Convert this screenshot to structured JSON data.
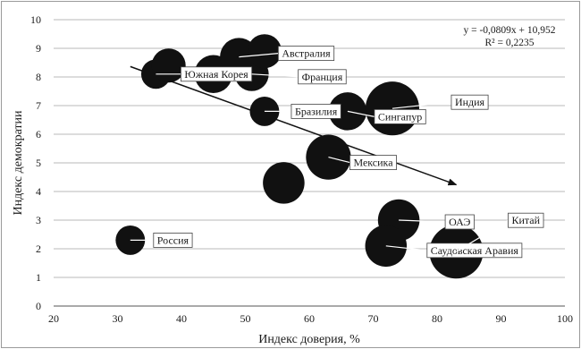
{
  "chart_data": {
    "type": "scatter",
    "subtype": "bubble",
    "title": "",
    "xlabel": "Индекс доверия, %",
    "ylabel": "Индекс демократии",
    "xlim": [
      20,
      100
    ],
    "ylim": [
      0,
      10
    ],
    "x_ticks": [
      "20",
      "30",
      "40",
      "50",
      "60",
      "70",
      "80",
      "90",
      "100"
    ],
    "y_ticks": [
      "0",
      "1",
      "2",
      "3",
      "4",
      "5",
      "6",
      "7",
      "8",
      "9",
      "10"
    ],
    "grid": "horizontal",
    "bubble_color": "#111111",
    "points": [
      {
        "label": "Россия",
        "x": 32,
        "y": 2.3,
        "size": 3
      },
      {
        "label": "Южная Корея",
        "x": 36,
        "y": 8.1,
        "size": 3
      },
      {
        "label": "",
        "x": 38,
        "y": 8.4,
        "size": 4
      },
      {
        "label": "",
        "x": 45,
        "y": 8.1,
        "size": 5
      },
      {
        "label": "Австралия",
        "x": 49,
        "y": 8.7,
        "size": 5
      },
      {
        "label": "Франция",
        "x": 51,
        "y": 8.1,
        "size": 4
      },
      {
        "label": "",
        "x": 53,
        "y": 8.9,
        "size": 4
      },
      {
        "label": "Бразилия",
        "x": 53,
        "y": 6.8,
        "size": 3
      },
      {
        "label": "",
        "x": 56,
        "y": 4.3,
        "size": 6
      },
      {
        "label": "Мексика",
        "x": 63,
        "y": 5.2,
        "size": 7
      },
      {
        "label": "Сингапур",
        "x": 66,
        "y": 6.8,
        "size": 5
      },
      {
        "label": "Индия",
        "x": 73,
        "y": 6.9,
        "size": 10
      },
      {
        "label": "ОАЭ",
        "x": 74,
        "y": 3.0,
        "size": 6
      },
      {
        "label": "Саудовская Аравия",
        "x": 72,
        "y": 2.1,
        "size": 6
      },
      {
        "label": "Китай",
        "x": 83,
        "y": 1.9,
        "size": 10
      }
    ],
    "trendline": {
      "equation": "y = -0,0809x + 10,952",
      "r_squared": "R² = 0,2235",
      "slope": -0.0809,
      "intercept": 10.952,
      "x_start": 32,
      "x_end": 83
    }
  }
}
